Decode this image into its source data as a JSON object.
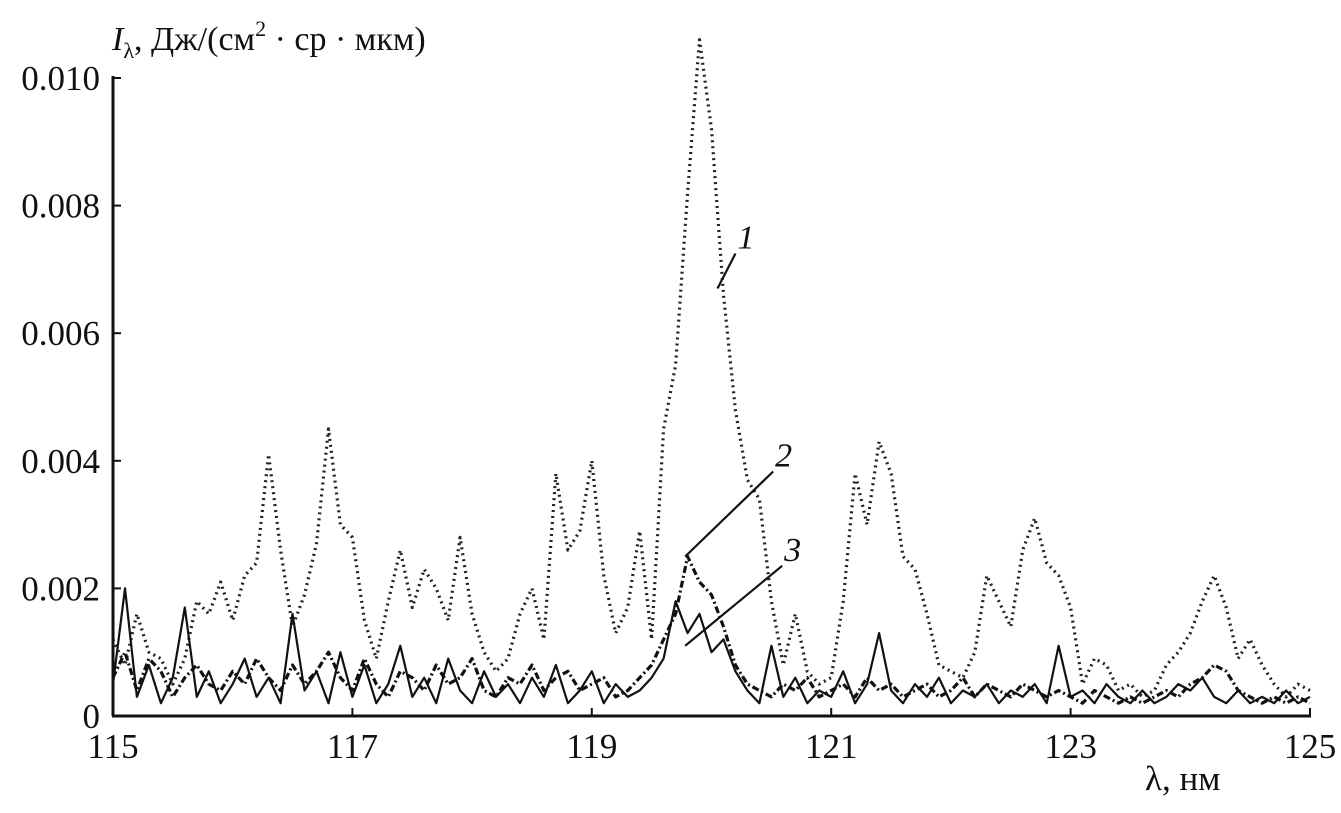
{
  "chart_data": {
    "type": "line",
    "title": "",
    "ylabel_symbol": "I",
    "ylabel_sub": "λ",
    "ylabel_units": ", Дж/(см",
    "ylabel_sup": "2",
    "ylabel_tail": " · ср · мкм)",
    "xlabel": "λ, нм",
    "xlim": [
      115,
      125
    ],
    "ylim": [
      0,
      0.01
    ],
    "x_ticks": [
      "115",
      "117",
      "119",
      "121",
      "123",
      "125"
    ],
    "y_ticks": [
      "0",
      "0.002",
      "0.004",
      "0.006",
      "0.008",
      "0.010"
    ],
    "grid": false,
    "x_start": 115.0,
    "x_step": 0.1,
    "series": [
      {
        "name": "1",
        "style": "dotted",
        "values": [
          0.0012,
          0.0008,
          0.0016,
          0.001,
          0.0009,
          0.0005,
          0.0009,
          0.0018,
          0.0016,
          0.0021,
          0.0015,
          0.0022,
          0.0024,
          0.0041,
          0.0026,
          0.0014,
          0.0019,
          0.0027,
          0.0045,
          0.003,
          0.0028,
          0.0015,
          0.0009,
          0.0018,
          0.0026,
          0.0017,
          0.0023,
          0.002,
          0.0015,
          0.0028,
          0.0016,
          0.001,
          0.0007,
          0.0009,
          0.0016,
          0.002,
          0.0012,
          0.0038,
          0.0026,
          0.0029,
          0.004,
          0.0022,
          0.0013,
          0.0017,
          0.0029,
          0.0012,
          0.0045,
          0.0055,
          0.0082,
          0.0106,
          0.0092,
          0.0066,
          0.0048,
          0.0037,
          0.0034,
          0.0018,
          0.0008,
          0.0016,
          0.0007,
          0.0005,
          0.0006,
          0.0018,
          0.0038,
          0.003,
          0.0043,
          0.0038,
          0.0025,
          0.0023,
          0.0016,
          0.0008,
          0.0007,
          0.0006,
          0.001,
          0.0022,
          0.0018,
          0.0014,
          0.0026,
          0.0031,
          0.0024,
          0.0022,
          0.0017,
          0.0005,
          0.0009,
          0.0008,
          0.0004,
          0.0005,
          0.0003,
          0.0004,
          0.0008,
          0.001,
          0.0013,
          0.0018,
          0.0022,
          0.0017,
          0.0009,
          0.0012,
          0.0008,
          0.0005,
          0.0003,
          0.0005,
          0.0004
        ]
      },
      {
        "name": "2",
        "style": "dashdot",
        "values": [
          0.0006,
          0.001,
          0.0004,
          0.0009,
          0.0007,
          0.0003,
          0.0006,
          0.0008,
          0.0005,
          0.0004,
          0.0007,
          0.0005,
          0.0009,
          0.0006,
          0.0004,
          0.0008,
          0.0005,
          0.0007,
          0.001,
          0.0006,
          0.0004,
          0.0009,
          0.0005,
          0.0003,
          0.0007,
          0.0006,
          0.0004,
          0.0008,
          0.0005,
          0.0006,
          0.0009,
          0.0004,
          0.0003,
          0.0006,
          0.0005,
          0.0008,
          0.0004,
          0.0006,
          0.0007,
          0.0004,
          0.0005,
          0.0006,
          0.0003,
          0.0004,
          0.0006,
          0.0008,
          0.0012,
          0.0016,
          0.0025,
          0.0021,
          0.0019,
          0.0014,
          0.0008,
          0.0005,
          0.0004,
          0.0003,
          0.0005,
          0.0004,
          0.0006,
          0.0003,
          0.0004,
          0.0005,
          0.0003,
          0.0006,
          0.0004,
          0.0005,
          0.0003,
          0.0004,
          0.0005,
          0.0003,
          0.0004,
          0.0006,
          0.0003,
          0.0005,
          0.0004,
          0.0003,
          0.0005,
          0.0004,
          0.0003,
          0.0004,
          0.0003,
          0.0002,
          0.0004,
          0.0003,
          0.0002,
          0.0003,
          0.0002,
          0.0003,
          0.0004,
          0.0003,
          0.0005,
          0.0006,
          0.0008,
          0.0007,
          0.0004,
          0.0003,
          0.0002,
          0.0003,
          0.0002,
          0.0003,
          0.0002
        ]
      },
      {
        "name": "3",
        "style": "solid",
        "values": [
          0.0005,
          0.002,
          0.0003,
          0.0008,
          0.0002,
          0.0006,
          0.0017,
          0.0003,
          0.0007,
          0.0002,
          0.0005,
          0.0009,
          0.0003,
          0.0006,
          0.0002,
          0.0016,
          0.0004,
          0.0007,
          0.0002,
          0.001,
          0.0003,
          0.0008,
          0.0002,
          0.0005,
          0.0011,
          0.0003,
          0.0006,
          0.0002,
          0.0009,
          0.0004,
          0.0002,
          0.0007,
          0.0003,
          0.0005,
          0.0002,
          0.0006,
          0.0003,
          0.0008,
          0.0002,
          0.0004,
          0.0007,
          0.0002,
          0.0005,
          0.0003,
          0.0004,
          0.0006,
          0.0009,
          0.0018,
          0.0013,
          0.0016,
          0.001,
          0.0012,
          0.0007,
          0.0004,
          0.0002,
          0.0011,
          0.0003,
          0.0006,
          0.0002,
          0.0004,
          0.0003,
          0.0007,
          0.0002,
          0.0005,
          0.0013,
          0.0004,
          0.0002,
          0.0005,
          0.0003,
          0.0006,
          0.0002,
          0.0004,
          0.0003,
          0.0005,
          0.0002,
          0.0004,
          0.0003,
          0.0005,
          0.0002,
          0.0011,
          0.0003,
          0.0004,
          0.0002,
          0.0005,
          0.0003,
          0.0002,
          0.0004,
          0.0002,
          0.0003,
          0.0005,
          0.0004,
          0.0006,
          0.0003,
          0.0002,
          0.0004,
          0.0002,
          0.0003,
          0.0002,
          0.0004,
          0.0002,
          0.0003
        ]
      }
    ],
    "annotations": [
      {
        "text": "1",
        "series": "1",
        "x": 120.05,
        "y": 0.0067
      },
      {
        "text": "2",
        "series": "2",
        "x": 119.78,
        "y": 0.0025
      },
      {
        "text": "3",
        "series": "3",
        "x": 119.78,
        "y": 0.0011
      }
    ]
  }
}
